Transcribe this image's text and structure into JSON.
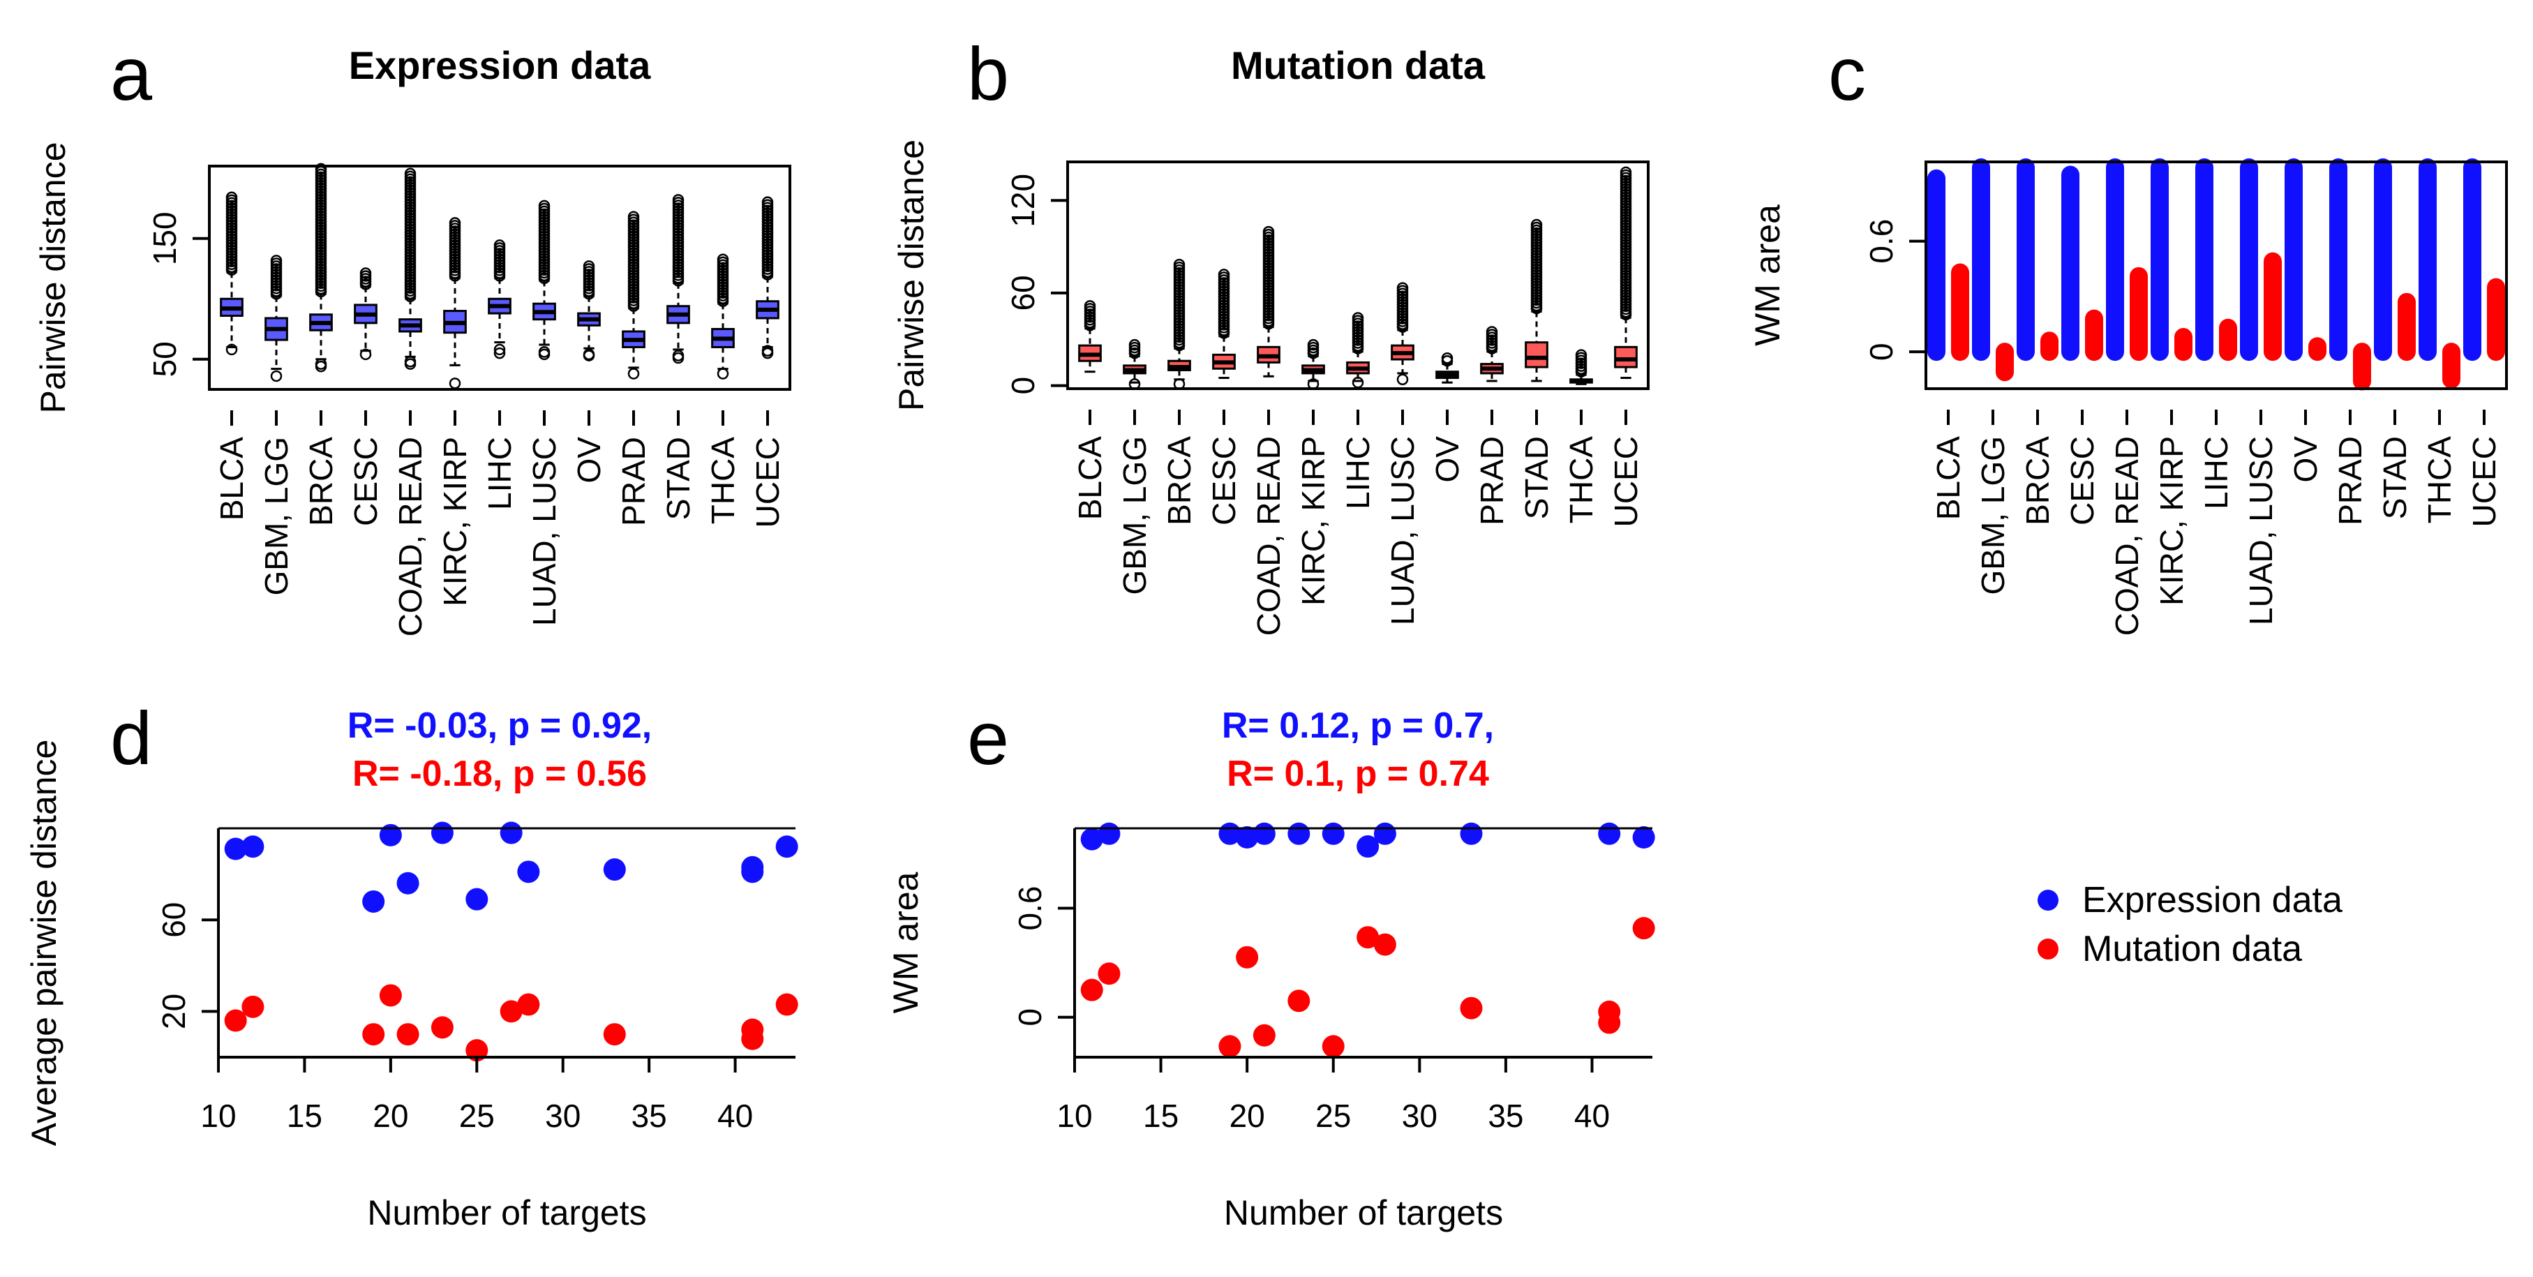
{
  "colors": {
    "expression": "#1010ff",
    "mutation": "#ff0000",
    "axis": "#000000"
  },
  "legend": {
    "items": [
      {
        "label": "Expression data",
        "color": "#1010ff"
      },
      {
        "label": "Mutation data",
        "color": "#ff0000"
      }
    ]
  },
  "chart_data": [
    {
      "id": "a",
      "panel_label": "a",
      "type": "box",
      "title": "Expression data",
      "ylabel": "Pairwise distance",
      "xlabel": "",
      "ylim": [
        25,
        210
      ],
      "yticks": [
        50,
        150
      ],
      "categories": [
        "BLCA",
        "GBM, LGG",
        "BRCA",
        "CESC",
        "COAD, READ",
        "KIRC, KIRP",
        "LIHC",
        "LUAD, LUSC",
        "OV",
        "PRAD",
        "STAD",
        "THCA",
        "UCEC"
      ],
      "boxes": [
        {
          "min": 60,
          "q1": 86,
          "median": 92,
          "q3": 100,
          "max": 122,
          "out_low": [
            58
          ],
          "out_high_from": 124,
          "out_high_to": 185
        },
        {
          "min": 42,
          "q1": 66,
          "median": 75,
          "q3": 84,
          "max": 102,
          "out_low": [
            36
          ],
          "out_high_from": 104,
          "out_high_to": 133
        },
        {
          "min": 50,
          "q1": 74,
          "median": 80,
          "q3": 87,
          "max": 104,
          "out_low": [
            46,
            44
          ],
          "out_high_from": 106,
          "out_high_to": 210
        },
        {
          "min": 57,
          "q1": 80,
          "median": 87,
          "q3": 95,
          "max": 110,
          "out_low": [
            54
          ],
          "out_high_from": 112,
          "out_high_to": 122
        },
        {
          "min": 52,
          "q1": 73,
          "median": 78,
          "q3": 83,
          "max": 100,
          "out_low": [
            48,
            46
          ],
          "out_high_from": 102,
          "out_high_to": 206
        },
        {
          "min": 45,
          "q1": 72,
          "median": 80,
          "q3": 90,
          "max": 117,
          "out_low": [
            30
          ],
          "out_high_from": 119,
          "out_high_to": 165
        },
        {
          "min": 64,
          "q1": 88,
          "median": 94,
          "q3": 100,
          "max": 117,
          "out_low": [
            58,
            55
          ],
          "out_high_from": 119,
          "out_high_to": 146
        },
        {
          "min": 62,
          "q1": 83,
          "median": 89,
          "q3": 96,
          "max": 115,
          "out_low": [
            56,
            54
          ],
          "out_high_from": 117,
          "out_high_to": 178
        },
        {
          "min": 59,
          "q1": 78,
          "median": 83,
          "q3": 88,
          "max": 102,
          "out_low": [
            54,
            53
          ],
          "out_high_from": 104,
          "out_high_to": 128
        },
        {
          "min": 43,
          "q1": 60,
          "median": 66,
          "q3": 73,
          "max": 92,
          "out_low": [
            38
          ],
          "out_high_from": 94,
          "out_high_to": 169
        },
        {
          "min": 58,
          "q1": 80,
          "median": 87,
          "q3": 94,
          "max": 113,
          "out_low": [
            53,
            51
          ],
          "out_high_from": 115,
          "out_high_to": 183
        },
        {
          "min": 42,
          "q1": 60,
          "median": 67,
          "q3": 75,
          "max": 96,
          "out_low": [
            38
          ],
          "out_high_from": 98,
          "out_high_to": 134
        },
        {
          "min": 60,
          "q1": 84,
          "median": 91,
          "q3": 98,
          "max": 118,
          "out_low": [
            57,
            55
          ],
          "out_high_from": 120,
          "out_high_to": 182
        }
      ]
    },
    {
      "id": "b",
      "panel_label": "b",
      "type": "box",
      "title": "Mutation data",
      "ylabel": "Pairwise distance",
      "xlabel": "",
      "ylim": [
        -2,
        145
      ],
      "yticks": [
        0,
        60,
        120
      ],
      "categories": [
        "BLCA",
        "GBM, LGG",
        "BRCA",
        "CESC",
        "COAD, READ",
        "KIRC, KIRP",
        "LIHC",
        "LUAD, LUSC",
        "OV",
        "PRAD",
        "STAD",
        "THCA",
        "UCEC"
      ],
      "boxes": [
        {
          "min": 9,
          "q1": 16,
          "median": 20,
          "q3": 26,
          "max": 37,
          "out_low": [],
          "out_high_from": 39,
          "out_high_to": 52
        },
        {
          "min": 2,
          "q1": 8,
          "median": 10,
          "q3": 13,
          "max": 19,
          "out_low": [
            1
          ],
          "out_high_from": 21,
          "out_high_to": 27
        },
        {
          "min": 4,
          "q1": 10,
          "median": 12,
          "q3": 16,
          "max": 24,
          "out_low": [
            1
          ],
          "out_high_from": 26,
          "out_high_to": 80
        },
        {
          "min": 5,
          "q1": 11,
          "median": 15,
          "q3": 20,
          "max": 32,
          "out_low": [],
          "out_high_from": 34,
          "out_high_to": 73
        },
        {
          "min": 6,
          "q1": 15,
          "median": 19,
          "q3": 25,
          "max": 38,
          "out_low": [],
          "out_high_from": 40,
          "out_high_to": 100
        },
        {
          "min": 3,
          "q1": 8,
          "median": 10,
          "q3": 13,
          "max": 19,
          "out_low": [
            1
          ],
          "out_high_from": 21,
          "out_high_to": 28
        },
        {
          "min": 3,
          "q1": 8,
          "median": 11,
          "q3": 15,
          "max": 22,
          "out_low": [
            2
          ],
          "out_high_from": 24,
          "out_high_to": 45
        },
        {
          "min": 8,
          "q1": 17,
          "median": 21,
          "q3": 26,
          "max": 36,
          "out_low": [
            4
          ],
          "out_high_from": 38,
          "out_high_to": 64
        },
        {
          "min": 2,
          "q1": 5,
          "median": 7,
          "q3": 9,
          "max": 14,
          "out_low": [],
          "out_high_from": 16,
          "out_high_to": 19
        },
        {
          "min": 3,
          "q1": 8,
          "median": 11,
          "q3": 14,
          "max": 22,
          "out_low": [],
          "out_high_from": 24,
          "out_high_to": 35
        },
        {
          "min": 3,
          "q1": 12,
          "median": 18,
          "q3": 28,
          "max": 48,
          "out_low": [],
          "out_high_from": 50,
          "out_high_to": 105
        },
        {
          "min": 1,
          "q1": 2,
          "median": 3,
          "q3": 4,
          "max": 7,
          "out_low": [],
          "out_high_from": 9,
          "out_high_to": 20
        },
        {
          "min": 5,
          "q1": 12,
          "median": 17,
          "q3": 25,
          "max": 44,
          "out_low": [],
          "out_high_from": 46,
          "out_high_to": 140
        }
      ]
    },
    {
      "id": "c",
      "panel_label": "c",
      "type": "bar",
      "title": "",
      "ylabel": "WM area",
      "xlabel": "",
      "ylim": [
        -0.2,
        1.03
      ],
      "yticks": [
        0.0,
        0.6
      ],
      "categories": [
        "BLCA",
        "GBM, LGG",
        "BRCA",
        "CESC",
        "COAD, READ",
        "KIRC, KIRP",
        "LIHC",
        "LUAD, LUSC",
        "OV",
        "PRAD",
        "STAD",
        "THCA",
        "UCEC"
      ],
      "series": [
        {
          "name": "Expression data",
          "color": "#1010ff",
          "values": [
            0.94,
            1.0,
            1.0,
            0.96,
            1.0,
            1.0,
            1.0,
            1.0,
            1.0,
            1.0,
            1.0,
            1.0,
            1.0
          ]
        },
        {
          "name": "Mutation data",
          "color": "#ff0000",
          "values": [
            0.43,
            -0.11,
            0.06,
            0.18,
            0.41,
            0.08,
            0.13,
            0.49,
            0.03,
            -0.16,
            0.27,
            -0.15,
            0.35
          ]
        }
      ]
    },
    {
      "id": "d",
      "panel_label": "d",
      "type": "scatter",
      "title_lines": [
        {
          "text": "R= -0.03, p = 0.92,",
          "color": "#1010ff"
        },
        {
          "text": "R= -0.18, p = 0.56",
          "color": "#ff0000"
        }
      ],
      "ylabel": "Average pairwise distance",
      "xlabel": "Number of targets",
      "xlim": [
        10,
        43.5
      ],
      "ylim": [
        0,
        100
      ],
      "xticks": [
        10,
        15,
        20,
        25,
        30,
        35,
        40
      ],
      "yticks": [
        20,
        60
      ],
      "series": [
        {
          "name": "Expression data",
          "color": "#1010ff",
          "x": [
            11,
            12,
            19,
            20,
            21,
            23,
            25,
            27,
            28,
            33,
            41,
            41,
            43
          ],
          "y": [
            91,
            92,
            68,
            97,
            76,
            98,
            69,
            98,
            81,
            82,
            81,
            83,
            92
          ]
        },
        {
          "name": "Mutation data",
          "color": "#ff0000",
          "x": [
            11,
            12,
            19,
            20,
            21,
            23,
            25,
            27,
            28,
            33,
            41,
            41,
            43
          ],
          "y": [
            16,
            22,
            10,
            27,
            10,
            13,
            3,
            20,
            23,
            10,
            12,
            8,
            23
          ]
        }
      ]
    },
    {
      "id": "e",
      "panel_label": "e",
      "type": "scatter",
      "title_lines": [
        {
          "text": "R= 0.12, p = 0.7,",
          "color": "#1010ff"
        },
        {
          "text": "R= 0.1, p = 0.74",
          "color": "#ff0000"
        }
      ],
      "ylabel": "WM area",
      "xlabel": "Number of targets",
      "xlim": [
        10,
        43.5
      ],
      "ylim": [
        -0.22,
        1.04
      ],
      "xticks": [
        10,
        15,
        20,
        25,
        30,
        35,
        40
      ],
      "yticks": [
        0.0,
        0.6
      ],
      "series": [
        {
          "name": "Expression data",
          "color": "#1010ff",
          "x": [
            11,
            12,
            19,
            20,
            21,
            23,
            25,
            27,
            28,
            33,
            41,
            43
          ],
          "y": [
            0.98,
            1.01,
            1.01,
            0.99,
            1.01,
            1.01,
            1.01,
            0.94,
            1.01,
            1.01,
            1.01,
            0.99
          ]
        },
        {
          "name": "Mutation data",
          "color": "#ff0000",
          "x": [
            11,
            12,
            19,
            20,
            21,
            23,
            25,
            27,
            28,
            33,
            41,
            41,
            43
          ],
          "y": [
            0.15,
            0.24,
            -0.16,
            0.33,
            -0.1,
            0.09,
            -0.16,
            0.44,
            0.4,
            0.05,
            0.03,
            -0.03,
            0.49
          ]
        }
      ]
    }
  ]
}
